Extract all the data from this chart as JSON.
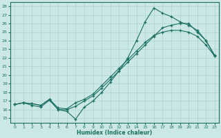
{
  "xlabel": "Humidex (Indice chaleur)",
  "xlim": [
    -0.5,
    23.5
  ],
  "ylim": [
    14.5,
    28.5
  ],
  "xticks": [
    0,
    1,
    2,
    3,
    4,
    5,
    6,
    7,
    8,
    9,
    10,
    11,
    12,
    13,
    14,
    15,
    16,
    17,
    18,
    19,
    20,
    21,
    22,
    23
  ],
  "yticks": [
    15,
    16,
    17,
    18,
    19,
    20,
    21,
    22,
    23,
    24,
    25,
    26,
    27,
    28
  ],
  "bg_color": "#cce8e6",
  "line_color": "#1a6e62",
  "grid_color": "#aad4d0",
  "line1_x": [
    0,
    1,
    2,
    3,
    4,
    5,
    6,
    7,
    8,
    9,
    10,
    11,
    12,
    13,
    14,
    15,
    16,
    17,
    18,
    19,
    20,
    21,
    22,
    23
  ],
  "line1_y": [
    16.6,
    16.8,
    16.7,
    16.5,
    17.2,
    16.0,
    15.8,
    14.9,
    16.3,
    17.0,
    18.0,
    19.2,
    20.5,
    22.0,
    24.0,
    26.2,
    27.8,
    27.2,
    26.8,
    26.2,
    25.8,
    25.2,
    24.0,
    22.3
  ],
  "line2_x": [
    0,
    1,
    2,
    3,
    4,
    5,
    6,
    7,
    8,
    9,
    10,
    11,
    12,
    13,
    14,
    15,
    16,
    17,
    18,
    19,
    20,
    21,
    22,
    23
  ],
  "line2_y": [
    16.6,
    16.8,
    16.5,
    16.3,
    17.1,
    16.0,
    16.0,
    16.4,
    17.0,
    17.6,
    18.5,
    19.5,
    20.5,
    21.5,
    22.5,
    23.5,
    24.5,
    25.5,
    25.8,
    26.0,
    26.0,
    25.0,
    24.0,
    22.2
  ],
  "line3_x": [
    0,
    1,
    2,
    3,
    4,
    5,
    6,
    7,
    8,
    9,
    10,
    11,
    12,
    13,
    14,
    15,
    16,
    17,
    18,
    19,
    20,
    21,
    22,
    23
  ],
  "line3_y": [
    16.6,
    16.8,
    16.7,
    16.5,
    17.2,
    16.2,
    16.1,
    16.8,
    17.2,
    17.8,
    18.8,
    19.8,
    20.8,
    21.8,
    22.8,
    23.8,
    24.6,
    25.0,
    25.2,
    25.2,
    25.0,
    24.5,
    23.5,
    22.2
  ]
}
